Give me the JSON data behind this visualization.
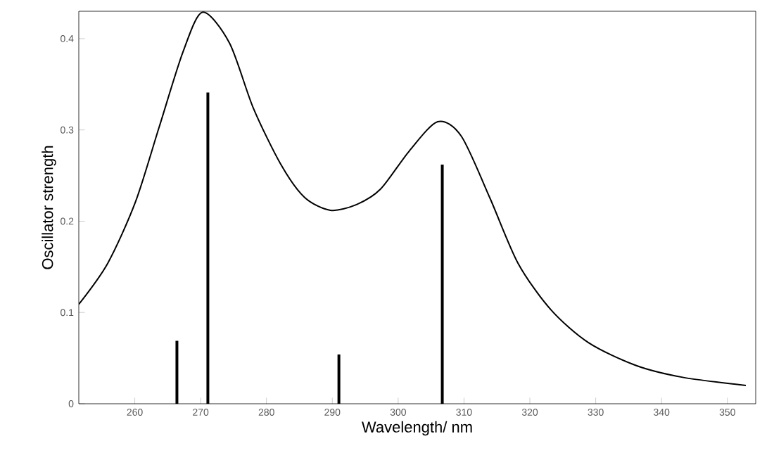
{
  "chart_data": {
    "type": "line",
    "xlabel": "Wavelength/ nm",
    "ylabel": "Oscillator strength",
    "xlim": [
      251.5,
      354.3
    ],
    "ylim": [
      0,
      0.43
    ],
    "xticks": [
      260,
      270,
      280,
      290,
      300,
      310,
      320,
      330,
      340,
      350
    ],
    "yticks": [
      0,
      0.1,
      0.2,
      0.3,
      0.4
    ],
    "grid": false,
    "series": [
      {
        "color": "#000000",
        "x": [
          251.5,
          255.9,
          260.1,
          263.7,
          267.3,
          270.3,
          274.4,
          278.0,
          282.2,
          285.8,
          289.7,
          293.6,
          297.3,
          301.7,
          306.0,
          309.6,
          313.9,
          318.2,
          323.2,
          328.9,
          336.1,
          343.2,
          352.8
        ],
        "values": [
          0.109,
          0.154,
          0.221,
          0.303,
          0.385,
          0.429,
          0.395,
          0.324,
          0.262,
          0.226,
          0.212,
          0.218,
          0.235,
          0.277,
          0.309,
          0.293,
          0.226,
          0.154,
          0.103,
          0.067,
          0.042,
          0.029,
          0.02
        ]
      },
      {
        "type": "bar",
        "color": "#000000",
        "x": [
          266.4,
          271.1,
          291.0,
          306.7
        ],
        "values": [
          0.069,
          0.341,
          0.054,
          0.262
        ]
      }
    ]
  }
}
